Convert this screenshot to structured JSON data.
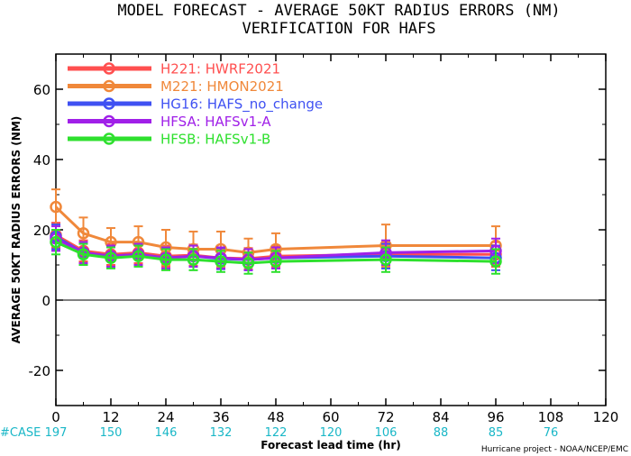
{
  "chart_data": {
    "type": "line",
    "title": "MODEL FORECAST - AVERAGE 50KT RADIUS ERRORS (NM)",
    "subtitle": "VERIFICATION FOR HAFS",
    "xlabel": "Forecast lead time (hr)",
    "ylabel": "AVERAGE 50KT RADIUS ERRORS (NM)",
    "xlim": [
      0,
      120
    ],
    "ylim": [
      -30,
      70
    ],
    "xticks": [
      0,
      12,
      24,
      36,
      48,
      60,
      72,
      84,
      96,
      108,
      120
    ],
    "yticks": [
      -20,
      0,
      20,
      40,
      60
    ],
    "zero_line": true,
    "legend_position": "top-left",
    "credit": "Hurricane project - NOAA/NCEP/EMC",
    "case_label": "#CASE",
    "case_counts": [
      {
        "x": 0,
        "n": "197"
      },
      {
        "x": 12,
        "n": "150"
      },
      {
        "x": 24,
        "n": "146"
      },
      {
        "x": 36,
        "n": "132"
      },
      {
        "x": 48,
        "n": "122"
      },
      {
        "x": 60,
        "n": "120"
      },
      {
        "x": 72,
        "n": "106"
      },
      {
        "x": 84,
        "n": "88"
      },
      {
        "x": 96,
        "n": "85"
      },
      {
        "x": 108,
        "n": "76"
      }
    ],
    "x": [
      0,
      6,
      12,
      18,
      24,
      30,
      36,
      42,
      48,
      72,
      96
    ],
    "series": [
      {
        "name": "H221: HWRF2021",
        "color": "#ff4f4f",
        "values": [
          18.5,
          14.0,
          13.0,
          13.5,
          12.5,
          12.8,
          12.0,
          11.8,
          12.5,
          13.0,
          13.0
        ],
        "err": [
          3.5,
          3.0,
          3.0,
          3.0,
          3.0,
          3.0,
          3.0,
          3.0,
          3.0,
          3.5,
          3.5
        ]
      },
      {
        "name": "M221: HMON2021",
        "color": "#f0883a",
        "values": [
          26.5,
          19.0,
          16.5,
          16.5,
          15.0,
          14.5,
          14.5,
          13.5,
          14.5,
          15.5,
          15.5
        ],
        "err": [
          5.0,
          4.5,
          4.0,
          4.5,
          5.0,
          5.0,
          5.0,
          4.0,
          4.5,
          6.0,
          5.5
        ]
      },
      {
        "name": "HG16: HAFS_no_change",
        "color": "#3f51f2",
        "values": [
          18.0,
          13.5,
          12.5,
          13.0,
          12.0,
          12.5,
          11.8,
          11.5,
          12.0,
          12.5,
          12.0
        ],
        "err": [
          3.5,
          3.0,
          3.0,
          3.0,
          3.0,
          3.0,
          3.0,
          3.0,
          3.0,
          3.5,
          3.5
        ]
      },
      {
        "name": "HFSA: HAFSv1-A",
        "color": "#a020e8",
        "values": [
          17.5,
          13.5,
          12.5,
          13.0,
          12.0,
          12.5,
          12.0,
          11.5,
          12.0,
          13.5,
          14.0
        ],
        "err": [
          3.5,
          3.0,
          3.0,
          3.0,
          3.0,
          3.0,
          3.0,
          3.0,
          3.0,
          3.5,
          3.5
        ]
      },
      {
        "name": "HFSB: HAFSv1-B",
        "color": "#2ee02e",
        "values": [
          16.5,
          13.0,
          12.0,
          12.5,
          11.5,
          11.5,
          11.0,
          10.5,
          11.0,
          11.5,
          11.0
        ],
        "err": [
          3.5,
          3.0,
          3.0,
          3.0,
          3.0,
          3.0,
          3.0,
          3.0,
          3.0,
          3.5,
          3.5
        ]
      }
    ]
  }
}
